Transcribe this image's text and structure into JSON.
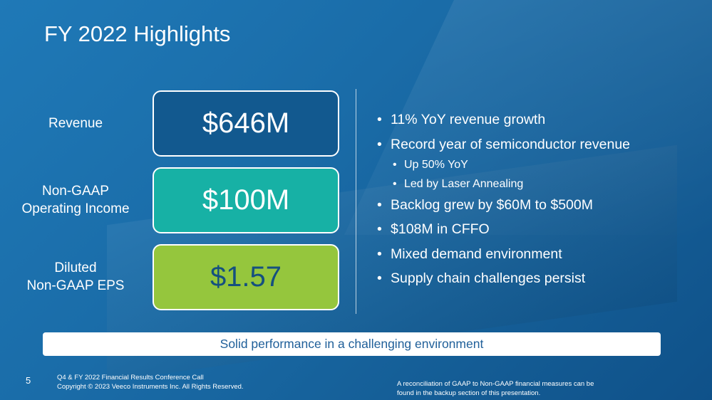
{
  "slide": {
    "title": "FY 2022 Highlights",
    "page_number": "5"
  },
  "metrics": [
    {
      "label_line1": "Revenue",
      "label_line2": "",
      "value": "$646M",
      "color": "#12598f"
    },
    {
      "label_line1": "Non-GAAP",
      "label_line2": "Operating Income",
      "value": "$100M",
      "color": "#17b1a5"
    },
    {
      "label_line1": "Diluted",
      "label_line2": "Non-GAAP EPS",
      "value": "$1.57",
      "color": "#95c63d"
    }
  ],
  "bullets": {
    "b1": "11% YoY revenue growth",
    "b2": "Record year of semiconductor revenue",
    "b2_sub1": "Up 50% YoY",
    "b2_sub2": "Led by Laser Annealing",
    "b3": "Backlog grew by $60M to $500M",
    "b4": "$108M in CFFO",
    "b5": "Mixed demand environment",
    "b6": "Supply chain challenges persist"
  },
  "tagline": "Solid performance in a challenging environment",
  "footer": {
    "left_line1": "Q4 & FY 2022 Financial Results Conference Call",
    "left_line2": "Copyright © 2023 Veeco Instruments Inc. All Rights Reserved.",
    "right_line1": "A reconciliation of GAAP to Non-GAAP financial measures can be",
    "right_line2": "found in the backup section of this presentation."
  },
  "colors": {
    "background": "#1a6ca8",
    "tagline_text": "#1f5f99"
  }
}
